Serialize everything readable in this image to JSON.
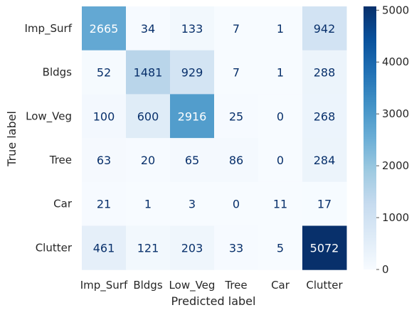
{
  "chart_data": {
    "type": "heatmap",
    "title": "",
    "xlabel": "Predicted label",
    "ylabel": "True label",
    "x_categories": [
      "Imp_Surf",
      "Bldgs",
      "Low_Veg",
      "Tree",
      "Car",
      "Clutter"
    ],
    "y_categories": [
      "Imp_Surf",
      "Bldgs",
      "Low_Veg",
      "Tree",
      "Car",
      "Clutter"
    ],
    "matrix": [
      [
        2665,
        34,
        133,
        7,
        1,
        942
      ],
      [
        52,
        1481,
        929,
        7,
        1,
        288
      ],
      [
        100,
        600,
        2916,
        25,
        0,
        268
      ],
      [
        63,
        20,
        65,
        86,
        0,
        284
      ],
      [
        21,
        1,
        3,
        0,
        11,
        17
      ],
      [
        461,
        121,
        203,
        33,
        5,
        5072
      ]
    ],
    "colorbar": {
      "range": [
        0,
        5072
      ],
      "ticks": [
        0,
        1000,
        2000,
        3000,
        4000,
        5000
      ],
      "tick_labels": [
        "0",
        "1000",
        "2000",
        "3000",
        "4000",
        "5000"
      ]
    },
    "colormap": "Blues",
    "grid": false
  }
}
